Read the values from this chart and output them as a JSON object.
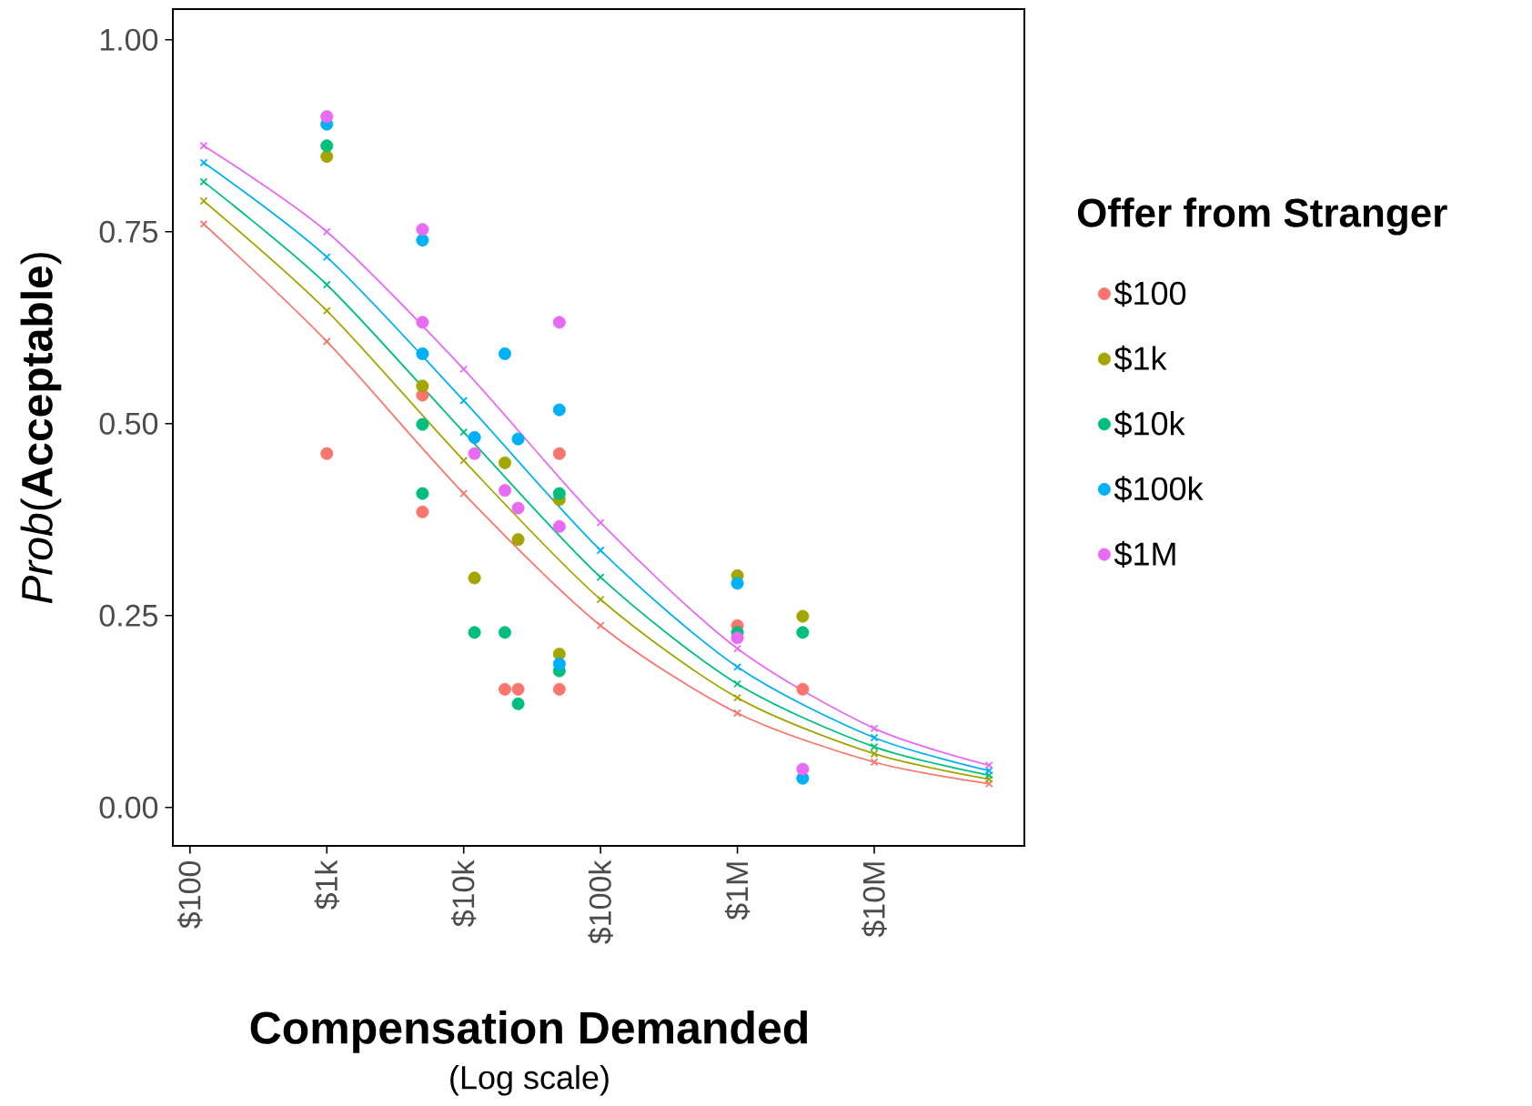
{
  "chart_data": {
    "type": "scatter",
    "xlabel": "Compensation Demanded",
    "ylabel": "*Prob*(**Acceptable**)",
    "legend_title": "Offer from Stranger",
    "annotations": [
      "(Log scale)"
    ],
    "log": "x",
    "xlim": [
      75,
      125000000
    ],
    "xticks": [
      {
        "value": 100,
        "label": "$100"
      },
      {
        "value": 1000,
        "label": "$1k"
      },
      {
        "value": 10000,
        "label": "$10k"
      },
      {
        "value": 100000,
        "label": "$100k"
      },
      {
        "value": 1000000,
        "label": "$1M"
      },
      {
        "value": 10000000,
        "label": "$10M"
      }
    ],
    "ylim": [
      -0.05,
      1.04
    ],
    "yticks": [
      {
        "value": 0,
        "label": "0.00"
      },
      {
        "value": 0.25,
        "label": "0.25"
      },
      {
        "value": 0.5,
        "label": "0.50"
      },
      {
        "value": 0.75,
        "label": "0.75"
      },
      {
        "value": 1,
        "label": "1.00"
      }
    ],
    "grid": false,
    "legend": "right",
    "series": [
      {
        "type": "line",
        "marker": "cross",
        "color": "#f8766d",
        "x": [
          126,
          1000,
          10000,
          100000,
          1000000,
          10000000,
          69000000
        ],
        "values": [
          0.76,
          0.607,
          0.409,
          0.237,
          0.123,
          0.059,
          0.031
        ]
      },
      {
        "type": "line",
        "marker": "cross",
        "color": "#a3a500",
        "x": [
          126,
          1000,
          10000,
          100000,
          1000000,
          10000000,
          69000000
        ],
        "values": [
          0.79,
          0.647,
          0.452,
          0.271,
          0.143,
          0.07,
          0.037
        ]
      },
      {
        "type": "line",
        "marker": "cross",
        "color": "#00bf7d",
        "x": [
          126,
          1000,
          10000,
          100000,
          1000000,
          10000000,
          69000000
        ],
        "values": [
          0.815,
          0.681,
          0.489,
          0.3,
          0.161,
          0.079,
          0.042
        ]
      },
      {
        "type": "line",
        "marker": "cross",
        "color": "#00b0f6",
        "x": [
          126,
          1000,
          10000,
          100000,
          1000000,
          10000000,
          69000000
        ],
        "values": [
          0.84,
          0.717,
          0.53,
          0.335,
          0.183,
          0.091,
          0.048
        ]
      },
      {
        "type": "line",
        "marker": "cross",
        "color": "#e76bf3",
        "x": [
          126,
          1000,
          10000,
          100000,
          1000000,
          10000000,
          69000000
        ],
        "values": [
          0.862,
          0.75,
          0.571,
          0.371,
          0.207,
          0.103,
          0.055
        ]
      },
      {
        "name": "$100",
        "marker": "circle",
        "color": "#f8766d",
        "x": [
          1000,
          5000,
          5000,
          20000,
          25000,
          50000,
          50000,
          1000000,
          3000000
        ],
        "values": [
          0.461,
          0.537,
          0.385,
          0.154,
          0.154,
          0.461,
          0.154,
          0.237,
          0.154
        ]
      },
      {
        "name": "$1k",
        "marker": "circle",
        "color": "#a3a500",
        "x": [
          1000,
          5000,
          12000,
          20000,
          25000,
          50000,
          50000,
          1000000,
          3000000
        ],
        "values": [
          0.848,
          0.549,
          0.299,
          0.449,
          0.349,
          0.401,
          0.2,
          0.302,
          0.249
        ]
      },
      {
        "name": "$10k",
        "marker": "circle",
        "color": "#00bf7d",
        "x": [
          1000,
          5000,
          5000,
          12000,
          20000,
          25000,
          50000,
          50000,
          1000000,
          3000000
        ],
        "values": [
          0.862,
          0.499,
          0.409,
          0.228,
          0.228,
          0.135,
          0.409,
          0.178,
          0.228,
          0.228
        ]
      },
      {
        "name": "$100k",
        "marker": "circle",
        "color": "#00b0f6",
        "x": [
          1000,
          5000,
          5000,
          12000,
          20000,
          25000,
          50000,
          50000,
          1000000,
          3000000
        ],
        "values": [
          0.89,
          0.739,
          0.591,
          0.482,
          0.591,
          0.48,
          0.518,
          0.187,
          0.292,
          0.038
        ]
      },
      {
        "name": "$1M",
        "marker": "circle",
        "color": "#e76bf3",
        "x": [
          1000,
          5000,
          5000,
          12000,
          20000,
          25000,
          50000,
          50000,
          1000000,
          3000000
        ],
        "values": [
          0.9,
          0.753,
          0.632,
          0.461,
          0.413,
          0.39,
          0.632,
          0.366,
          0.221,
          0.05
        ]
      }
    ]
  }
}
